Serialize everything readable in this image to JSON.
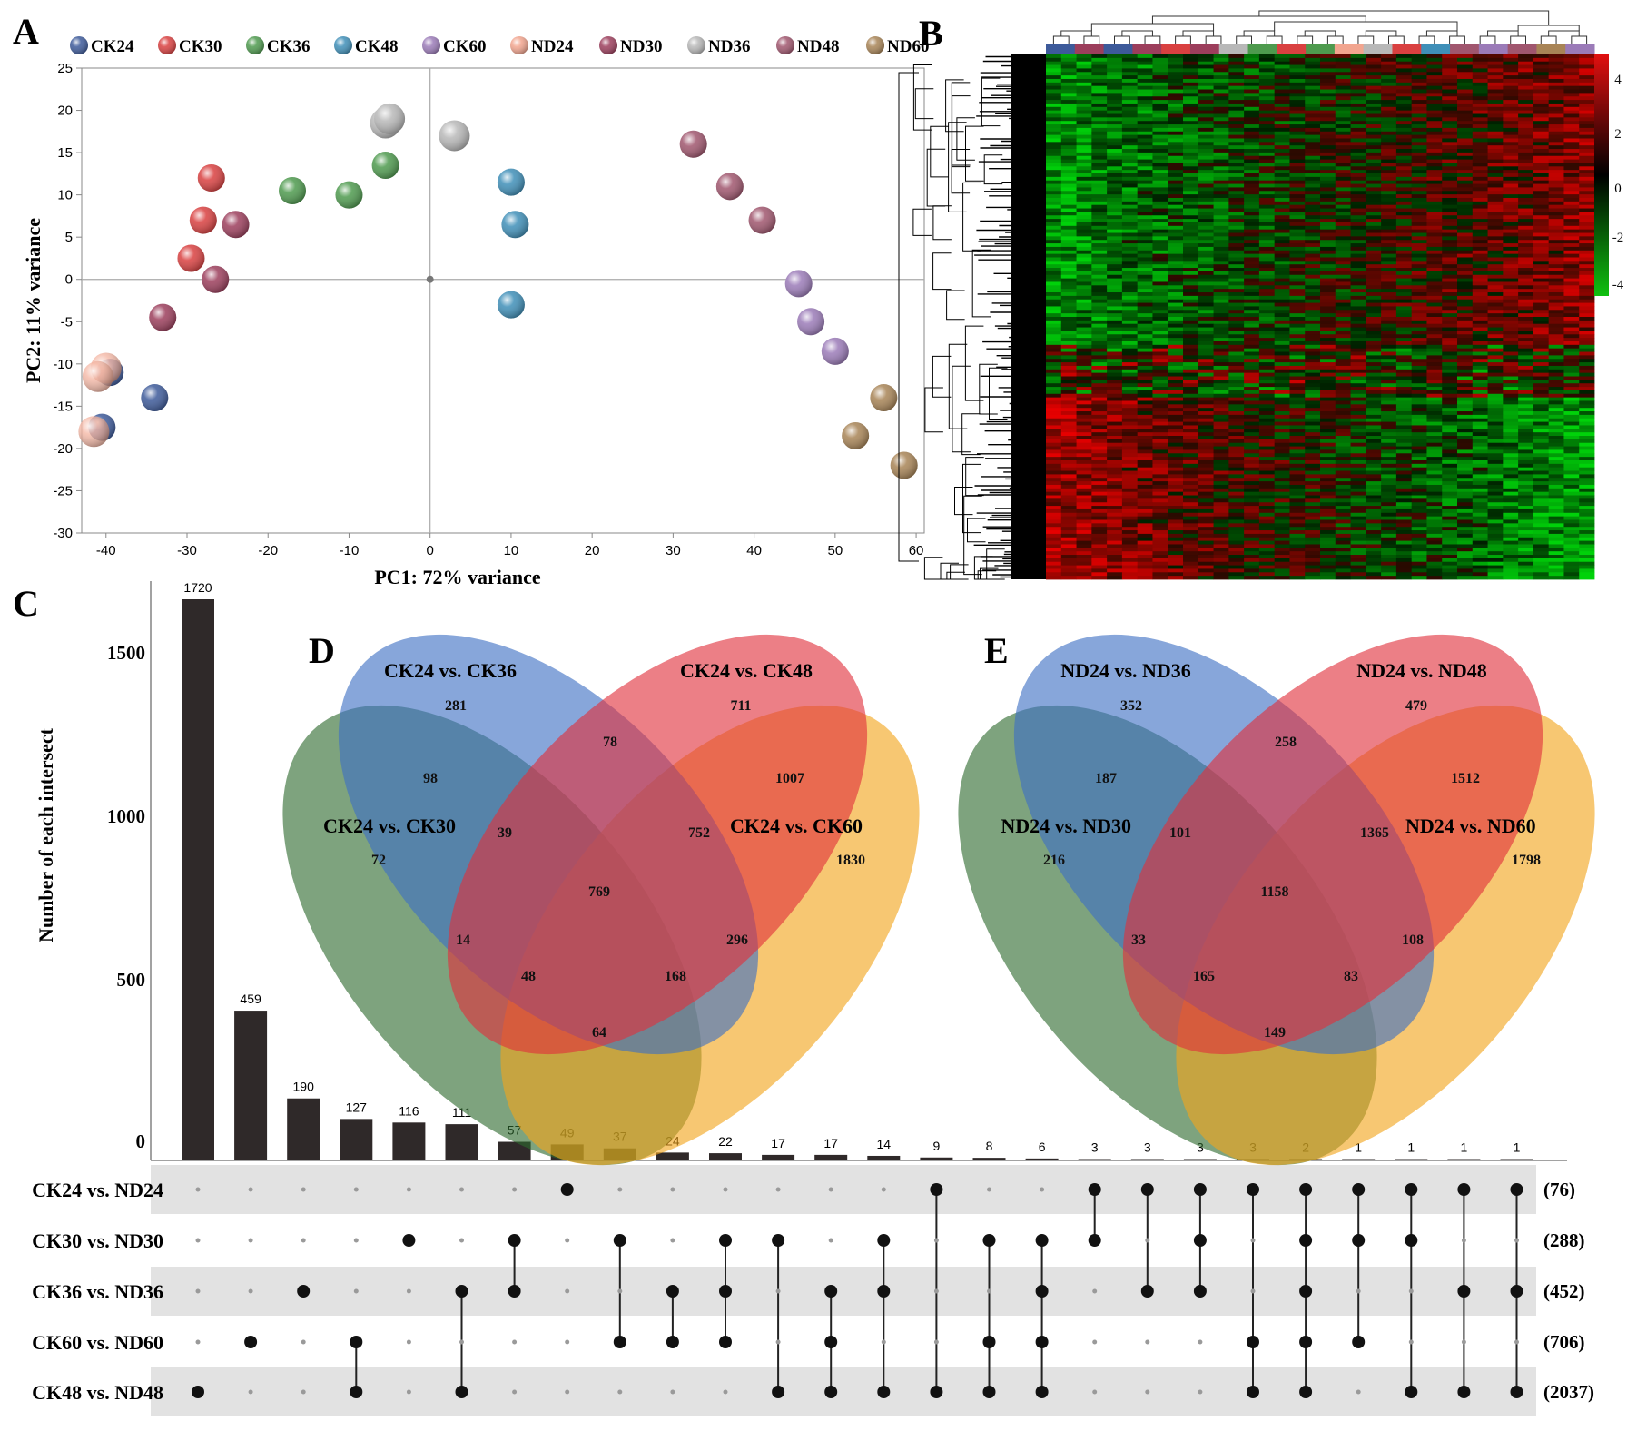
{
  "panel_labels": {
    "a": "A",
    "b": "B",
    "c": "C",
    "d": "D",
    "e": "E"
  },
  "colors": {
    "CK24": "#3d5a9a",
    "CK30": "#d94040",
    "CK36": "#4e9a4e",
    "CK48": "#3f8fb8",
    "CK60": "#9b7bb8",
    "ND24": "#f2a58f",
    "ND30": "#9c3e5c",
    "ND36": "#b8b8b8",
    "ND48": "#a0566e",
    "ND60": "#a88456",
    "venn_blue": "#3d6fc4",
    "venn_red": "#e0303c",
    "venn_green": "#2e6b2e",
    "venn_yellow": "#f2a41c",
    "upset_bar": "#2f2929",
    "heat_low": "#10c010",
    "heat_mid": "#000000",
    "heat_high": "#e01010"
  },
  "chart_data": [
    {
      "id": "A",
      "type": "scatter",
      "title": "",
      "xlabel": "PC1: 72% variance",
      "ylabel": "PC2: 11% variance",
      "xlim": [
        -43,
        61
      ],
      "ylim": [
        -30,
        25
      ],
      "xticks": [
        "-40",
        "-30",
        "-20",
        "-10",
        "0",
        "10",
        "20",
        "30",
        "40",
        "50",
        "60"
      ],
      "yticks": [
        "25",
        "20",
        "15",
        "10",
        "5",
        "0",
        "-5",
        "-10",
        "-15",
        "-20",
        "-25",
        "-30"
      ],
      "legend": [
        "CK24",
        "CK30",
        "CK36",
        "CK48",
        "CK60",
        "ND24",
        "ND30",
        "ND36",
        "ND48",
        "ND60"
      ],
      "series": [
        {
          "name": "CK24",
          "points": [
            [
              -39.5,
              -11
            ],
            [
              -34,
              -14
            ],
            [
              -40.5,
              -17.5
            ]
          ]
        },
        {
          "name": "CK30",
          "points": [
            [
              -27,
              12
            ],
            [
              -28,
              7
            ],
            [
              -29.5,
              2.5
            ]
          ]
        },
        {
          "name": "CK36",
          "points": [
            [
              -17,
              10.5
            ],
            [
              -10,
              10
            ],
            [
              -5.5,
              13.5
            ]
          ]
        },
        {
          "name": "CK48",
          "points": [
            [
              10,
              11.5
            ],
            [
              10.5,
              6.5
            ],
            [
              10,
              -3
            ]
          ]
        },
        {
          "name": "CK60",
          "points": [
            [
              45.5,
              -0.5
            ],
            [
              47,
              -5
            ],
            [
              50,
              -8.5
            ]
          ]
        },
        {
          "name": "ND24",
          "points": [
            [
              -40,
              -10.5
            ],
            [
              -41,
              -11.5
            ],
            [
              -41.5,
              -18
            ]
          ]
        },
        {
          "name": "ND30",
          "points": [
            [
              -24,
              6.5
            ],
            [
              -26.5,
              0
            ],
            [
              -33,
              -4.5
            ]
          ]
        },
        {
          "name": "ND36",
          "points": [
            [
              -5.5,
              18.5
            ],
            [
              -5,
              19
            ],
            [
              3,
              17
            ]
          ]
        },
        {
          "name": "ND48",
          "points": [
            [
              32.5,
              16
            ],
            [
              37,
              11
            ],
            [
              41,
              7
            ]
          ]
        },
        {
          "name": "ND60",
          "points": [
            [
              56,
              -14
            ],
            [
              52.5,
              -18.5
            ],
            [
              58.5,
              -22
            ]
          ]
        }
      ]
    },
    {
      "id": "B",
      "type": "heatmap",
      "colorbar_ticks": [
        "4",
        "2",
        "0",
        "-2",
        "-4"
      ],
      "column_groups": [
        "CK24",
        "ND30",
        "CK24",
        "ND30",
        "CK30",
        "ND30",
        "ND36",
        "CK36",
        "CK30",
        "CK36",
        "ND24",
        "ND36",
        "CK30",
        "CK48",
        "ND48",
        "CK60",
        "ND48",
        "ND60",
        "CK60"
      ]
    },
    {
      "id": "C",
      "type": "bar",
      "title": "",
      "ylabel": "Number of each intersect",
      "ylim": [
        0,
        1720
      ],
      "yticks": [
        "0",
        "500",
        "1000",
        "1500"
      ],
      "values": [
        1720,
        459,
        190,
        127,
        116,
        111,
        57,
        49,
        37,
        24,
        22,
        17,
        17,
        14,
        9,
        8,
        6,
        3,
        3,
        3,
        3,
        2,
        1,
        1,
        1,
        1
      ],
      "sets": [
        {
          "name": "CK24 vs. ND24",
          "size": "(76)"
        },
        {
          "name": "CK30 vs. ND30",
          "size": "(288)"
        },
        {
          "name": "CK36 vs. ND36",
          "size": "(452)"
        },
        {
          "name": "CK60 vs. ND60",
          "size": "(706)"
        },
        {
          "name": "CK48 vs. ND48",
          "size": "(2037)"
        }
      ],
      "memberships": [
        [
          4
        ],
        [
          3
        ],
        [
          2
        ],
        [
          3,
          4
        ],
        [
          1
        ],
        [
          2,
          4
        ],
        [
          1,
          2
        ],
        [
          0
        ],
        [
          1,
          3
        ],
        [
          2,
          3
        ],
        [
          1,
          2,
          3
        ],
        [
          1,
          4
        ],
        [
          2,
          3,
          4
        ],
        [
          1,
          2,
          4
        ],
        [
          0,
          4
        ],
        [
          1,
          3,
          4
        ],
        [
          1,
          2,
          3,
          4
        ],
        [
          0,
          1
        ],
        [
          0,
          2
        ],
        [
          0,
          1,
          2
        ],
        [
          0,
          3,
          4
        ],
        [
          0,
          1,
          2,
          3,
          4
        ],
        [
          0,
          1,
          3
        ],
        [
          0,
          1,
          4
        ],
        [
          0,
          2,
          4
        ],
        [
          0,
          2,
          4
        ]
      ]
    },
    {
      "id": "D",
      "type": "venn",
      "set_labels": [
        "CK24 vs. CK36",
        "CK24 vs. CK48",
        "CK24 vs. CK30",
        "CK24 vs. CK60"
      ],
      "regions": [
        "281",
        "711",
        "78",
        "98",
        "1007",
        "72",
        "39",
        "752",
        "1830",
        "769",
        "14",
        "296",
        "48",
        "168",
        "64"
      ]
    },
    {
      "id": "E",
      "type": "venn",
      "set_labels": [
        "ND24 vs. ND36",
        "ND24 vs. ND48",
        "ND24 vs. ND30",
        "ND24 vs. ND60"
      ],
      "regions": [
        "352",
        "479",
        "258",
        "187",
        "1512",
        "216",
        "101",
        "1365",
        "1798",
        "1158",
        "33",
        "108",
        "165",
        "83",
        "149"
      ]
    }
  ]
}
